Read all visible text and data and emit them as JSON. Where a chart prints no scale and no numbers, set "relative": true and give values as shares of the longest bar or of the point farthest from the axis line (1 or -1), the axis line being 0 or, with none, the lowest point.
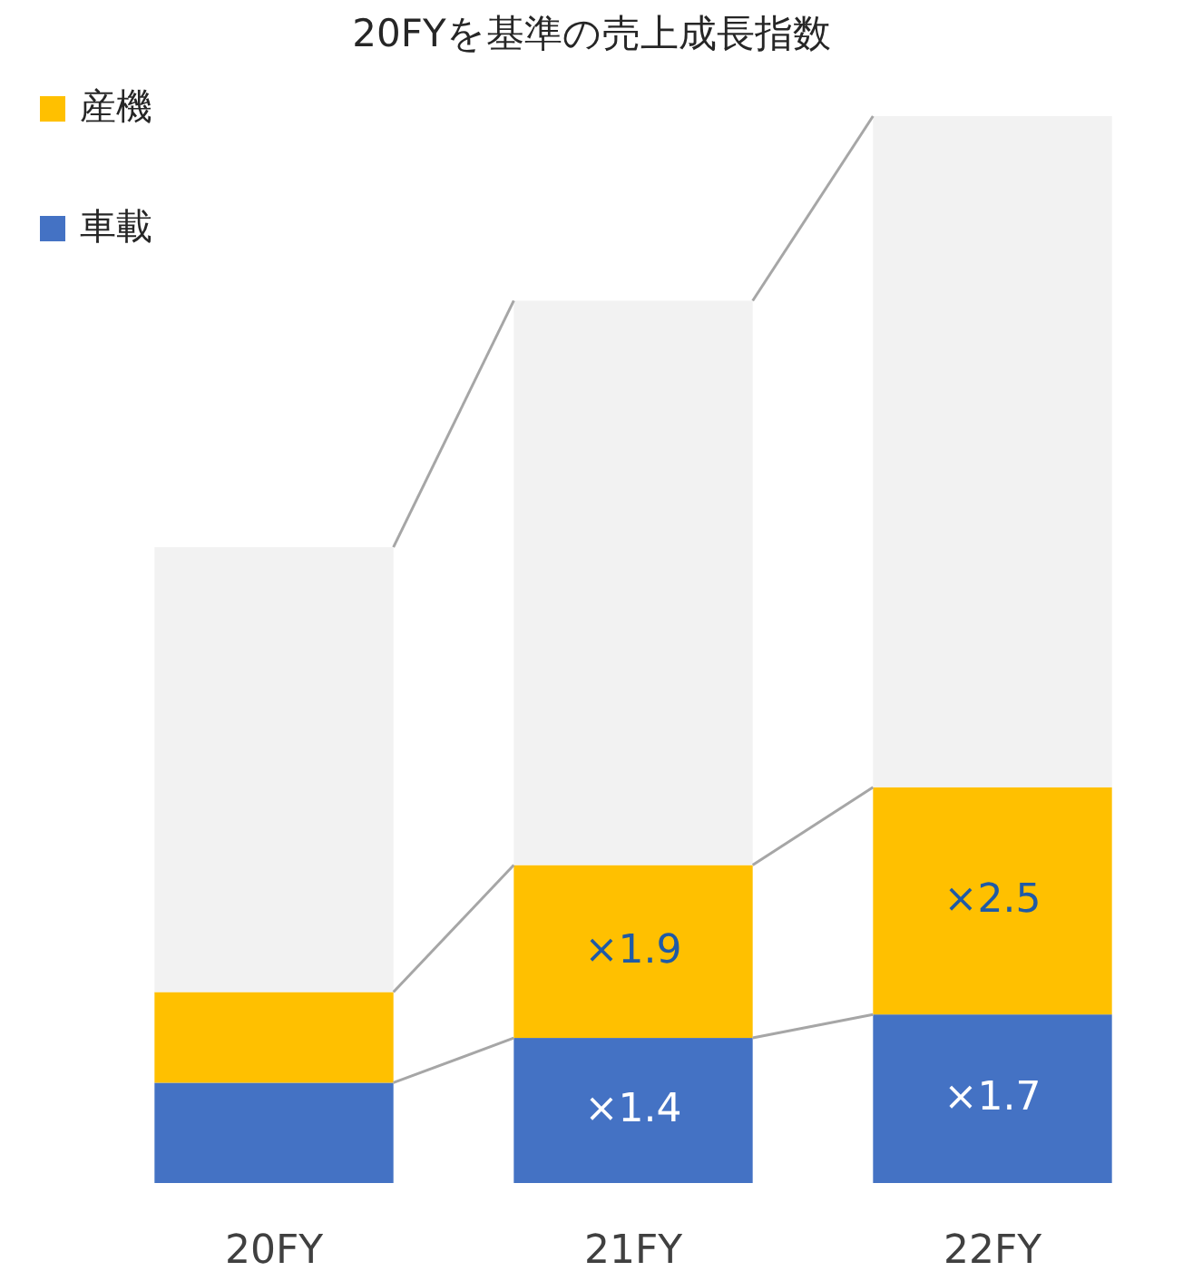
{
  "chart_data": {
    "type": "bar",
    "title": "20FYを基準の売上成長指数",
    "categories": [
      "20FY",
      "21FY",
      "22FY"
    ],
    "stacked": true,
    "relative": true,
    "legend": "top left",
    "series": [
      {
        "name": "車載",
        "color": "#4472c4",
        "values": [
          0.094,
          0.136,
          0.158
        ]
      },
      {
        "name": "産機",
        "color": "#ffc000",
        "values": [
          0.085,
          0.162,
          0.213
        ]
      },
      {
        "color": "#f2f2f2",
        "values": [
          0.417,
          0.529,
          0.629
        ]
      }
    ],
    "annotations": [
      {
        "text": "×1.4",
        "x": "21FY",
        "y": 0.136
      },
      {
        "text": "×1.7",
        "x": "22FY",
        "y": 0.158
      },
      {
        "text": "×1.9",
        "x": "21FY",
        "y": 0.298
      },
      {
        "text": "×2.5",
        "x": "22FY",
        "y": 0.371
      }
    ]
  }
}
